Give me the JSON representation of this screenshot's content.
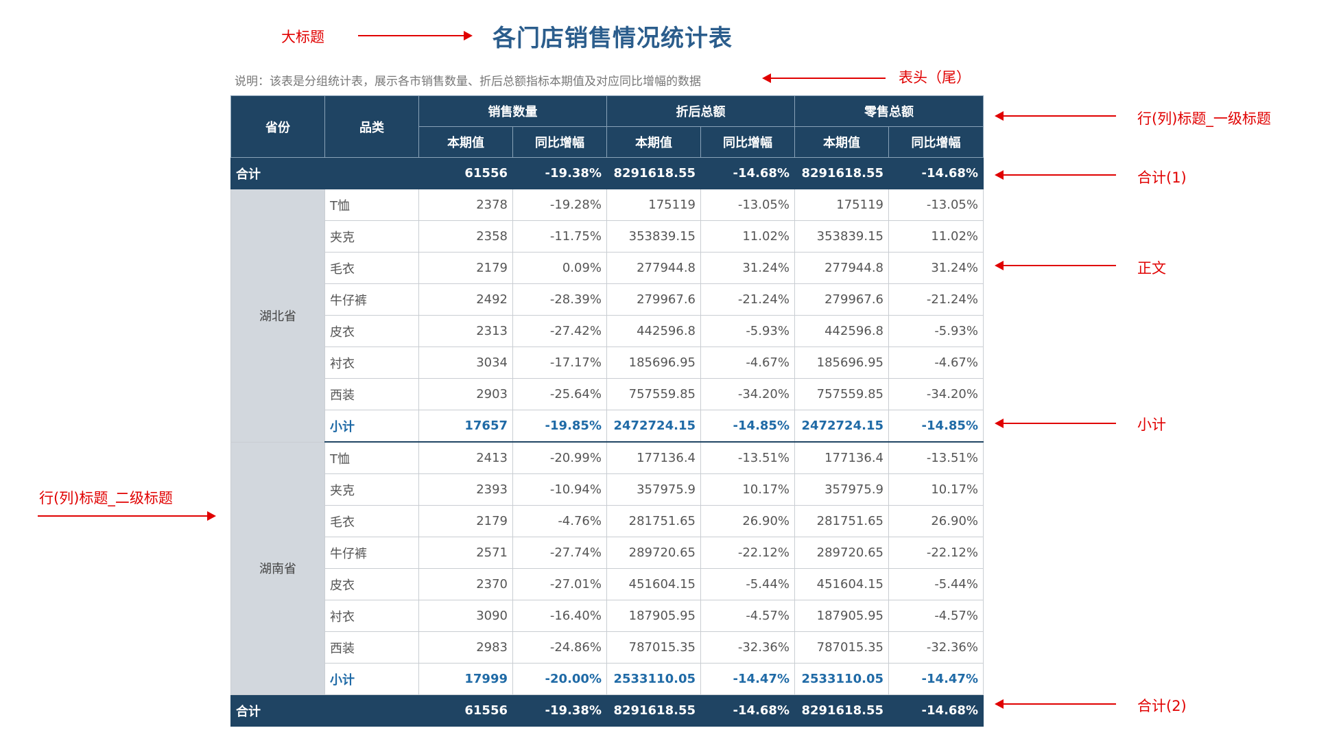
{
  "title": "各门店销售情况统计表",
  "description": "说明：该表是分组统计表，展示各市销售数量、折后总额指标本期值及对应同比增幅的数据",
  "annotations": {
    "big_title": "大标题",
    "header_tail": "表头（尾）",
    "level1_title": "行(列)标题_一级标题",
    "total1": "合计(1)",
    "body": "正文",
    "subtotal": "小计",
    "level2_title": "行(列)标题_二级标题",
    "total2": "合计(2)"
  },
  "table": {
    "col_province": "省份",
    "col_category": "品类",
    "groups": [
      "销售数量",
      "折后总额",
      "零售总额"
    ],
    "sub_current": "本期值",
    "sub_yoy": "同比增幅",
    "total_label": "合计",
    "subtotal_label": "小计",
    "total": [
      "61556",
      "-19.38%",
      "8291618.55",
      "-14.68%",
      "8291618.55",
      "-14.68%"
    ],
    "provinces": [
      {
        "name": "湖北省",
        "rows": [
          {
            "cat": "T恤",
            "v": [
              "2378",
              "-19.28%",
              "175119",
              "-13.05%",
              "175119",
              "-13.05%"
            ]
          },
          {
            "cat": "夹克",
            "v": [
              "2358",
              "-11.75%",
              "353839.15",
              "11.02%",
              "353839.15",
              "11.02%"
            ]
          },
          {
            "cat": "毛衣",
            "v": [
              "2179",
              "0.09%",
              "277944.8",
              "31.24%",
              "277944.8",
              "31.24%"
            ]
          },
          {
            "cat": "牛仔裤",
            "v": [
              "2492",
              "-28.39%",
              "279967.6",
              "-21.24%",
              "279967.6",
              "-21.24%"
            ]
          },
          {
            "cat": "皮衣",
            "v": [
              "2313",
              "-27.42%",
              "442596.8",
              "-5.93%",
              "442596.8",
              "-5.93%"
            ]
          },
          {
            "cat": "衬衣",
            "v": [
              "3034",
              "-17.17%",
              "185696.95",
              "-4.67%",
              "185696.95",
              "-4.67%"
            ]
          },
          {
            "cat": "西装",
            "v": [
              "2903",
              "-25.64%",
              "757559.85",
              "-34.20%",
              "757559.85",
              "-34.20%"
            ]
          }
        ],
        "subtotal": [
          "17657",
          "-19.85%",
          "2472724.15",
          "-14.85%",
          "2472724.15",
          "-14.85%"
        ]
      },
      {
        "name": "湖南省",
        "rows": [
          {
            "cat": "T恤",
            "v": [
              "2413",
              "-20.99%",
              "177136.4",
              "-13.51%",
              "177136.4",
              "-13.51%"
            ]
          },
          {
            "cat": "夹克",
            "v": [
              "2393",
              "-10.94%",
              "357975.9",
              "10.17%",
              "357975.9",
              "10.17%"
            ]
          },
          {
            "cat": "毛衣",
            "v": [
              "2179",
              "-4.76%",
              "281751.65",
              "26.90%",
              "281751.65",
              "26.90%"
            ]
          },
          {
            "cat": "牛仔裤",
            "v": [
              "2571",
              "-27.74%",
              "289720.65",
              "-22.12%",
              "289720.65",
              "-22.12%"
            ]
          },
          {
            "cat": "皮衣",
            "v": [
              "2370",
              "-27.01%",
              "451604.15",
              "-5.44%",
              "451604.15",
              "-5.44%"
            ]
          },
          {
            "cat": "衬衣",
            "v": [
              "3090",
              "-16.40%",
              "187905.95",
              "-4.57%",
              "187905.95",
              "-4.57%"
            ]
          },
          {
            "cat": "西装",
            "v": [
              "2983",
              "-24.86%",
              "787015.35",
              "-32.36%",
              "787015.35",
              "-32.36%"
            ]
          }
        ],
        "subtotal": [
          "17999",
          "-20.00%",
          "2533110.05",
          "-14.47%",
          "2533110.05",
          "-14.47%"
        ]
      }
    ]
  }
}
